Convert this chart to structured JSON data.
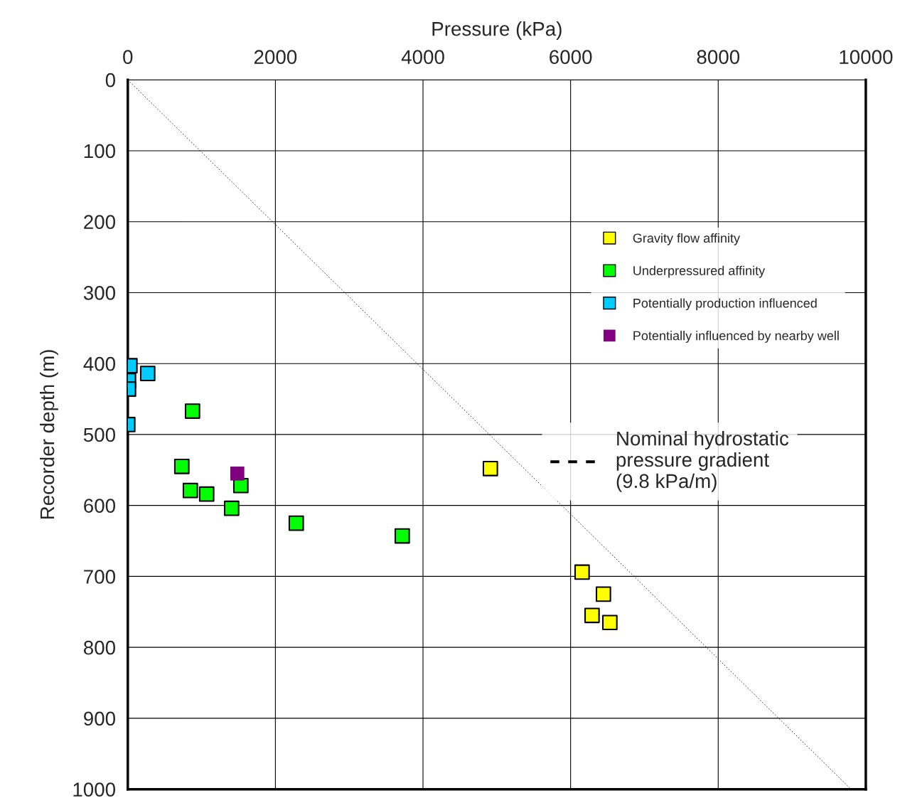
{
  "chart_data": {
    "type": "scatter",
    "xlabel": "Pressure (kPa)",
    "ylabel": "Recorder depth (m)",
    "xlim": [
      0,
      10000
    ],
    "xticks": [
      0,
      2000,
      4000,
      6000,
      8000,
      10000
    ],
    "ylim": [
      1000,
      0
    ],
    "yticks": [
      0,
      100,
      200,
      300,
      400,
      500,
      600,
      700,
      800,
      900,
      1000
    ],
    "grid": true,
    "legend": "right",
    "marker": "square",
    "series": [
      {
        "name": "Gravity flow affinity",
        "color": "#ffff00",
        "x": [
          4913,
          6156,
          6445,
          6291,
          6532
        ],
        "values": [
          548,
          694,
          725,
          755,
          765
        ]
      },
      {
        "name": "Underpressured affinity",
        "color": "#00ff00",
        "x": [
          877,
          732,
          848,
          1069,
          1532,
          1407,
          2283,
          3719
        ],
        "values": [
          467,
          545,
          579,
          584,
          572,
          604,
          625,
          643
        ]
      },
      {
        "name": "Potentially production influenced",
        "color": "#00ccff",
        "x": [
          29,
          270,
          10,
          10,
          0
        ],
        "values": [
          403,
          414,
          424,
          436,
          486
        ]
      },
      {
        "name": "Potentially influenced by nearby well",
        "color": "#800080",
        "x": [
          1484
        ],
        "values": [
          555
        ]
      },
      {
        "name": "Nominal hydrostatic\npressure gradient\n(9.8 kPa/m)",
        "type": "line",
        "marker": "none",
        "line_style": "dashed",
        "color": "#000000",
        "x": [
          0,
          9800
        ],
        "values": [
          0,
          1000
        ]
      }
    ]
  }
}
